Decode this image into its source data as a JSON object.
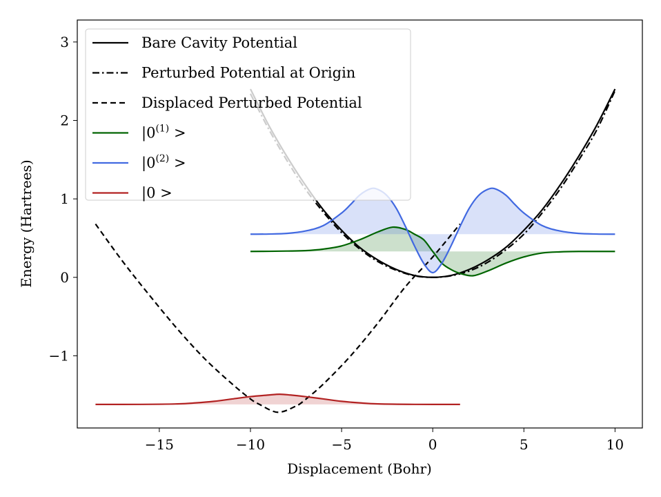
{
  "chart_data": {
    "type": "line",
    "title": "",
    "xlabel": "Displacement (Bohr)",
    "ylabel": "Energy (Hartrees)",
    "xlim": [
      -19.5,
      11.5
    ],
    "ylim": [
      -1.92,
      3.28
    ],
    "xticks": [
      -15,
      -10,
      -5,
      0,
      5,
      10
    ],
    "xtick_labels": [
      "−15",
      "−10",
      "−5",
      "0",
      "5",
      "10"
    ],
    "yticks": [
      -1,
      0,
      1,
      2,
      3
    ],
    "ytick_labels": [
      "−1",
      "0",
      "1",
      "2",
      "3"
    ],
    "grid": false,
    "legend_position": "upper-left",
    "series": [
      {
        "name": "Bare Cavity Potential",
        "color": "#000000",
        "dash": "solid",
        "x": [
          -10,
          -9,
          -8,
          -7,
          -6,
          -5,
          -4,
          -3,
          -2,
          -1,
          0,
          1,
          2,
          3,
          4,
          5,
          6,
          7,
          8,
          9,
          10
        ],
        "y": [
          2.4,
          1.94,
          1.54,
          1.18,
          0.86,
          0.6,
          0.38,
          0.22,
          0.1,
          0.024,
          0.0,
          0.024,
          0.1,
          0.22,
          0.38,
          0.6,
          0.86,
          1.18,
          1.54,
          1.94,
          2.4
        ]
      },
      {
        "name": "Perturbed Potential at Origin",
        "color": "#000000",
        "dash": "dashdot",
        "x": [
          -10,
          -9,
          -8,
          -7,
          -6,
          -5,
          -4,
          -3,
          -2,
          -1,
          0,
          1,
          2,
          3,
          4,
          5,
          6,
          7,
          8,
          9,
          10
        ],
        "y": [
          2.34,
          1.89,
          1.49,
          1.13,
          0.83,
          0.57,
          0.36,
          0.2,
          0.09,
          0.02,
          0.0,
          0.02,
          0.08,
          0.19,
          0.35,
          0.55,
          0.82,
          1.13,
          1.49,
          1.88,
          2.38
        ]
      },
      {
        "name": "Displaced Perturbed Potential",
        "color": "#000000",
        "dash": "dashed",
        "x": [
          -18.5,
          -17,
          -15.5,
          -14,
          -12.5,
          -11,
          -10,
          -9.5,
          -8.5,
          -7.5,
          -7,
          -6,
          -4.5,
          -3,
          -1.5,
          0,
          1.5
        ],
        "y": [
          0.68,
          0.2,
          -0.24,
          -0.66,
          -1.04,
          -1.36,
          -1.55,
          -1.62,
          -1.72,
          -1.64,
          -1.56,
          -1.36,
          -1.0,
          -0.58,
          -0.12,
          0.26,
          0.68
        ]
      },
      {
        "name": "|0(1)>",
        "color": "#006400",
        "dash": "solid",
        "baseline": 0.33,
        "x": [
          -10,
          -9,
          -8,
          -7,
          -6,
          -5,
          -4,
          -3,
          -2.2,
          -1.5,
          -1,
          -0.5,
          0,
          0.5,
          1,
          1.5,
          2.2,
          3,
          4,
          5,
          6,
          7,
          8,
          9,
          10
        ],
        "y": [
          0.33,
          0.332,
          0.335,
          0.34,
          0.36,
          0.4,
          0.48,
          0.58,
          0.64,
          0.61,
          0.55,
          0.48,
          0.33,
          0.18,
          0.1,
          0.05,
          0.02,
          0.08,
          0.18,
          0.26,
          0.31,
          0.325,
          0.33,
          0.33,
          0.33
        ]
      },
      {
        "name": "|0(2)>",
        "color": "#4169E1",
        "dash": "solid",
        "baseline": 0.55,
        "x": [
          -10,
          -9,
          -8,
          -7,
          -6,
          -5,
          -4.5,
          -4,
          -3.4,
          -3,
          -2.5,
          -2,
          -1.5,
          -1,
          -0.5,
          0,
          0.5,
          1,
          1.5,
          2,
          2.5,
          3,
          3.4,
          4,
          4.5,
          5,
          6,
          7,
          8,
          9,
          10
        ],
        "y": [
          0.55,
          0.552,
          0.56,
          0.59,
          0.66,
          0.82,
          0.93,
          1.05,
          1.13,
          1.12,
          1.04,
          0.88,
          0.65,
          0.4,
          0.18,
          0.06,
          0.18,
          0.4,
          0.65,
          0.88,
          1.04,
          1.12,
          1.13,
          1.05,
          0.93,
          0.82,
          0.66,
          0.59,
          0.56,
          0.552,
          0.55
        ]
      },
      {
        "name": "|0>",
        "color": "#B22222",
        "dash": "solid",
        "baseline": -1.62,
        "x": [
          -18.5,
          -16,
          -14,
          -13,
          -12,
          -11,
          -10,
          -9,
          -8.4,
          -7.8,
          -7,
          -6,
          -5,
          -4,
          -3,
          -1,
          1.5
        ],
        "y": [
          -1.62,
          -1.619,
          -1.613,
          -1.6,
          -1.58,
          -1.55,
          -1.52,
          -1.5,
          -1.49,
          -1.5,
          -1.52,
          -1.55,
          -1.58,
          -1.6,
          -1.613,
          -1.619,
          -1.62
        ]
      }
    ]
  },
  "legend": {
    "entries": [
      {
        "label_main": "Bare Cavity Potential",
        "label_sup": "",
        "label_tail": ""
      },
      {
        "label_main": "Perturbed Potential at Origin",
        "label_sup": "",
        "label_tail": ""
      },
      {
        "label_main": "Displaced Perturbed Potential",
        "label_sup": "",
        "label_tail": ""
      },
      {
        "label_main": "|0",
        "label_sup": "(1)",
        "label_tail": " >"
      },
      {
        "label_main": "|0",
        "label_sup": "(2)",
        "label_tail": " >"
      },
      {
        "label_main": "|0 >",
        "label_sup": "",
        "label_tail": ""
      }
    ]
  }
}
